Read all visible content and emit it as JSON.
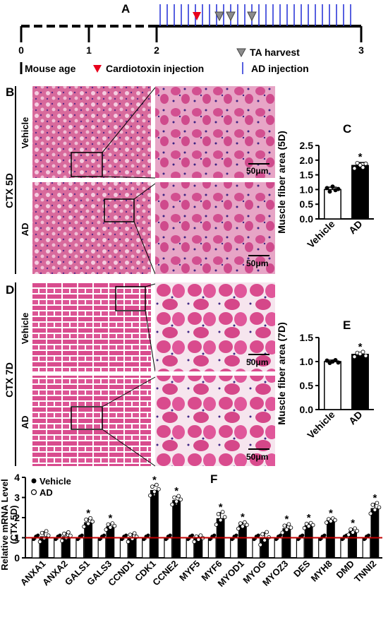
{
  "panel_labels": {
    "A": "A",
    "B": "B",
    "C": "C",
    "D": "D",
    "E": "E",
    "F": "F"
  },
  "timeline": {
    "ticks": [
      "0",
      "1",
      "2",
      "3"
    ],
    "legend": {
      "mouse_age": "Mouse age",
      "cardiotoxin": "Cardiotoxin injection",
      "ta_harvest": "TA harvest",
      "ad_injection": "AD injection"
    },
    "colors": {
      "cardiotoxin": "#e8001c",
      "ta_harvest": "#8c8c8c",
      "ad_injection": "#1f2bd6"
    }
  },
  "histology": {
    "group_5d": "CTX 5D",
    "group_7d": "CTX 7D",
    "row_vehicle": "Vehicle",
    "row_ad": "AD",
    "scale_bar": "50μm"
  },
  "chart_data": [
    {
      "id": "C",
      "type": "bar",
      "categories": [
        "Vehicle",
        "AD"
      ],
      "values": [
        1.0,
        1.82
      ],
      "errors": [
        0.08,
        0.1
      ],
      "fills": [
        "#ffffff",
        "#000000"
      ],
      "points": [
        [
          1.05,
          0.93,
          1.1,
          0.98,
          1.02
        ],
        [
          1.72,
          1.9,
          1.83,
          1.75,
          1.88
        ]
      ],
      "significance": [
        "",
        "*"
      ],
      "ylabel": "Muscle fiber area (5D)",
      "ylim": [
        0,
        2.5
      ],
      "yticks": [
        "0.0",
        "0.5",
        "1.0",
        "1.5",
        "2.0",
        "2.5"
      ]
    },
    {
      "id": "E",
      "type": "bar",
      "categories": [
        "Vehicle",
        "AD"
      ],
      "values": [
        1.0,
        1.15
      ],
      "errors": [
        0.03,
        0.04
      ],
      "fills": [
        "#ffffff",
        "#000000"
      ],
      "points": [
        [
          1.02,
          0.97,
          1.0,
          1.03,
          0.98
        ],
        [
          1.1,
          1.18,
          1.16,
          1.2,
          1.12
        ]
      ],
      "significance": [
        "",
        "*"
      ],
      "ylabel": "Muscle fiber area (7D)",
      "ylim": [
        0,
        1.5
      ],
      "yticks": [
        "0.0",
        "0.5",
        "1.0",
        "1.5"
      ]
    },
    {
      "id": "F",
      "type": "bar",
      "ylabel_line1": "Relative mRNA Level",
      "ylabel_line2": "(CTX 5D)",
      "ylim": [
        0,
        4
      ],
      "yticks": [
        "0",
        "1",
        "2",
        "3",
        "4"
      ],
      "reference_line": 1,
      "reference_color": "#c00000",
      "legend": {
        "vehicle": "Vehicle",
        "ad": "AD"
      },
      "categories": [
        "ANXA1",
        "ANXA2",
        "GALS1",
        "GALS3",
        "CCND1",
        "CDK1",
        "CCNE2",
        "MYF5",
        "MYF6",
        "MYOD1",
        "MYOG",
        "MYOZ3",
        "DES",
        "MYH8",
        "DMD",
        "TNNI2"
      ],
      "series": [
        {
          "name": "Vehicle",
          "fill": "#ffffff",
          "values": [
            1,
            1,
            1,
            1,
            1,
            1,
            1,
            1,
            1,
            1,
            1,
            1,
            1,
            1,
            1,
            1
          ]
        },
        {
          "name": "AD",
          "fill": "#000000",
          "values": [
            1.05,
            1.05,
            1.75,
            1.55,
            1.0,
            3.35,
            2.85,
            0.95,
            1.95,
            1.6,
            0.95,
            1.45,
            1.6,
            1.85,
            1.3,
            2.45
          ]
        }
      ],
      "errors": [
        0.25,
        0.2,
        0.2,
        0.15,
        0.2,
        0.25,
        0.2,
        0.15,
        0.3,
        0.15,
        0.3,
        0.2,
        0.12,
        0.1,
        0.15,
        0.25
      ],
      "significance": [
        "",
        "",
        "*",
        "*",
        "",
        "*",
        "*",
        "",
        "*",
        "*",
        "",
        "*",
        "*",
        "*",
        "*",
        "*"
      ]
    }
  ]
}
